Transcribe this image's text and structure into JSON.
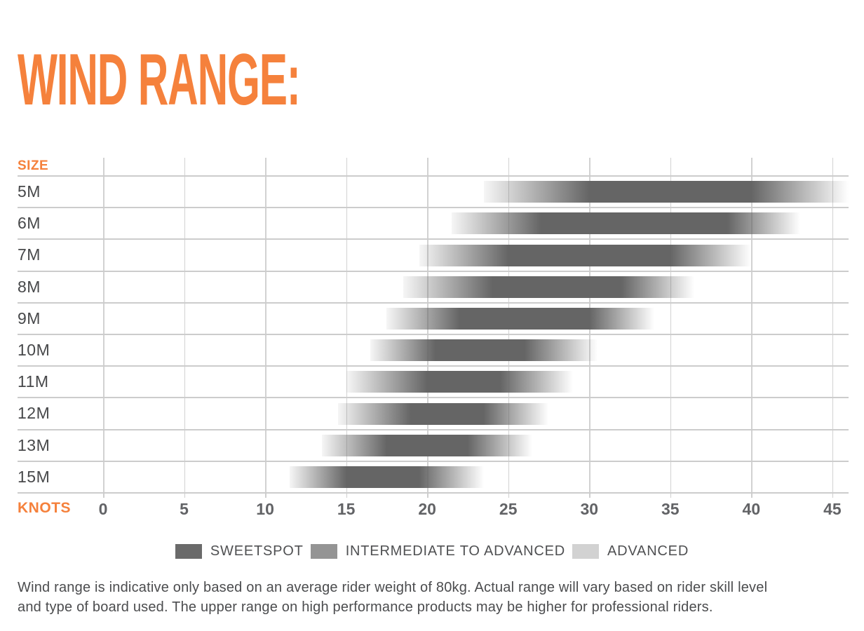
{
  "title": "WIND RANGE:",
  "accent_color": "#F5813C",
  "chart_data": {
    "type": "bar",
    "orientation": "horizontal",
    "title": "WIND RANGE:",
    "size_label": "SIZE",
    "xlabel": "KNOTS",
    "x_ticks": [
      0,
      5,
      10,
      15,
      20,
      25,
      30,
      35,
      40,
      45
    ],
    "axis_range": [
      0,
      46
    ],
    "grid": true,
    "bar_color": "#656565",
    "rows": [
      {
        "size": "5M",
        "min": 23.5,
        "sweetspot_min": 30,
        "sweetspot_max": 40,
        "max": 46
      },
      {
        "size": "6M",
        "min": 21.5,
        "sweetspot_min": 27,
        "sweetspot_max": 38.5,
        "max": 43
      },
      {
        "size": "7M",
        "min": 19.5,
        "sweetspot_min": 25,
        "sweetspot_max": 35,
        "max": 40
      },
      {
        "size": "8M",
        "min": 18.5,
        "sweetspot_min": 24,
        "sweetspot_max": 32,
        "max": 36.5
      },
      {
        "size": "9M",
        "min": 17.5,
        "sweetspot_min": 22,
        "sweetspot_max": 30,
        "max": 34
      },
      {
        "size": "10M",
        "min": 16.5,
        "sweetspot_min": 20.5,
        "sweetspot_max": 26,
        "max": 30.5
      },
      {
        "size": "11M",
        "min": 15,
        "sweetspot_min": 20,
        "sweetspot_max": 24.5,
        "max": 29
      },
      {
        "size": "12M",
        "min": 14.5,
        "sweetspot_min": 19,
        "sweetspot_max": 23.5,
        "max": 27.5
      },
      {
        "size": "13M",
        "min": 13.5,
        "sweetspot_min": 17.5,
        "sweetspot_max": 22.5,
        "max": 26.5
      },
      {
        "size": "15M",
        "min": 11.5,
        "sweetspot_min": 15,
        "sweetspot_max": 19.5,
        "max": 23.5
      }
    ],
    "legend": [
      {
        "label": "SWEETSPOT",
        "color": "#6a6a6a"
      },
      {
        "label": "INTERMEDIATE TO ADVANCED",
        "color": "#949494"
      },
      {
        "label": "ADVANCED",
        "color": "#d2d2d2"
      }
    ],
    "legend_position": "bottom-center"
  },
  "footer": {
    "line1": "Wind range is indicative only based on an average rider weight of 80kg. Actual range will vary based on rider skill level",
    "line2": "and type of board used. The upper range on high performance products may be higher for professional riders."
  }
}
